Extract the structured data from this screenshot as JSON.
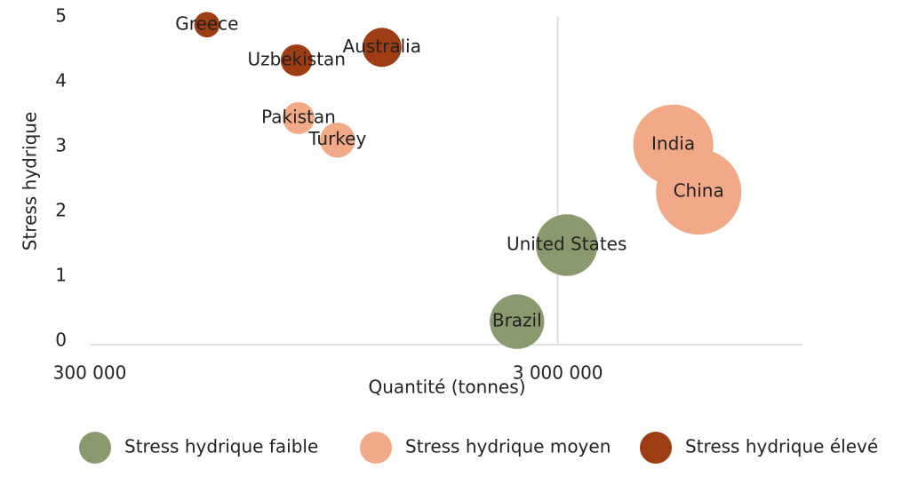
{
  "chart_data": {
    "type": "bubble",
    "x_label": "Quantité (tonnes)",
    "y_label": "Stress hydrique",
    "xlog": true,
    "xlim": [
      300000,
      10000000
    ],
    "xticks": [
      {
        "value": 300000,
        "label": "300 000"
      },
      {
        "value": 3000000,
        "label": "3 000 000"
      }
    ],
    "ylim": [
      0,
      5
    ],
    "yticks": [
      0,
      1,
      2,
      3,
      4,
      5
    ],
    "grid": true,
    "size_by": "x",
    "legend": "bottom",
    "series": [
      {
        "name": "Stress hydrique faible",
        "color": "#8b9a6e",
        "labels": [
          "United States",
          "Brazil"
        ],
        "x": [
          3135000,
          2455000
        ],
        "y": [
          1.48,
          0.3
        ]
      },
      {
        "name": "Stress hydrique moyen",
        "color": "#f1a988",
        "labels": [
          "Pakistan",
          "Turkey",
          "India",
          "China"
        ],
        "x": [
          838000,
          1015000,
          5295000,
          6000000
        ],
        "y": [
          3.44,
          3.1,
          3.03,
          2.3
        ]
      },
      {
        "name": "Stress hydrique élevé",
        "color": "#9e3d14",
        "labels": [
          "Greece",
          "Uzbekistan",
          "Australia"
        ],
        "x": [
          534000,
          830000,
          1263000
        ],
        "y": [
          4.88,
          4.33,
          4.53
        ]
      }
    ]
  }
}
